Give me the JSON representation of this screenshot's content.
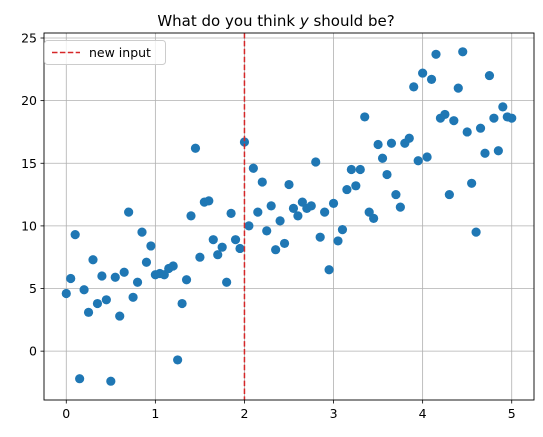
{
  "chart_data": {
    "type": "scatter",
    "title": "What do you think y should be?",
    "title_parts": {
      "before": "What do you think ",
      "var": "y",
      "after": " should be?"
    },
    "xlabel": "",
    "ylabel": "",
    "xlim": [
      -0.25,
      5.25
    ],
    "ylim": [
      -3.9,
      25.4
    ],
    "x_ticks": [
      0,
      1,
      2,
      3,
      4,
      5
    ],
    "x_tick_labels": [
      "0",
      "1",
      "2",
      "3",
      "4",
      "5"
    ],
    "y_ticks": [
      0,
      5,
      10,
      15,
      20,
      25
    ],
    "y_tick_labels": [
      "0",
      "5",
      "10",
      "15",
      "20",
      "25"
    ],
    "grid": true,
    "legend_position": "top-left",
    "vline": {
      "x": 2,
      "label": "new input",
      "color": "#d62728",
      "style": "dashed"
    },
    "marker_color": "#1f77b4",
    "x": [
      0.0,
      0.05,
      0.1,
      0.15,
      0.2,
      0.25,
      0.3,
      0.35,
      0.4,
      0.45,
      0.5,
      0.55,
      0.6,
      0.65,
      0.7,
      0.75,
      0.8,
      0.85,
      0.9,
      0.95,
      1.0,
      1.05,
      1.1,
      1.15,
      1.2,
      1.25,
      1.3,
      1.35,
      1.4,
      1.45,
      1.5,
      1.55,
      1.6,
      1.65,
      1.7,
      1.75,
      1.8,
      1.85,
      1.9,
      1.95,
      2.0,
      2.05,
      2.1,
      2.15,
      2.2,
      2.25,
      2.3,
      2.35,
      2.4,
      2.45,
      2.5,
      2.55,
      2.6,
      2.65,
      2.7,
      2.75,
      2.8,
      2.85,
      2.9,
      2.95,
      3.0,
      3.05,
      3.1,
      3.15,
      3.2,
      3.25,
      3.3,
      3.35,
      3.4,
      3.45,
      3.5,
      3.55,
      3.6,
      3.65,
      3.7,
      3.75,
      3.8,
      3.85,
      3.9,
      3.95,
      4.0,
      4.05,
      4.1,
      4.15,
      4.2,
      4.25,
      4.3,
      4.35,
      4.4,
      4.45,
      4.5,
      4.55,
      4.6,
      4.65,
      4.7,
      4.75,
      4.8,
      4.85,
      4.9,
      4.95,
      5.0
    ],
    "y": [
      4.6,
      5.8,
      9.3,
      -2.2,
      4.9,
      3.1,
      7.3,
      3.8,
      6.0,
      4.1,
      -2.4,
      5.9,
      2.8,
      6.3,
      11.1,
      4.3,
      5.5,
      9.5,
      7.1,
      8.4,
      6.1,
      6.2,
      6.1,
      6.6,
      6.8,
      -0.7,
      3.8,
      5.7,
      10.8,
      16.2,
      7.5,
      11.9,
      12.0,
      8.9,
      7.7,
      8.3,
      5.5,
      11.0,
      8.9,
      8.2,
      16.7,
      10.0,
      14.6,
      11.1,
      13.5,
      9.6,
      11.6,
      8.1,
      10.4,
      8.6,
      13.3,
      11.4,
      10.8,
      11.9,
      11.4,
      11.6,
      15.1,
      9.1,
      11.1,
      6.5,
      11.8,
      8.8,
      9.7,
      12.9,
      14.5,
      13.2,
      14.5,
      18.7,
      11.1,
      10.6,
      16.5,
      15.4,
      14.1,
      16.6,
      12.5,
      11.5,
      16.6,
      17.0,
      21.1,
      15.2,
      22.2,
      15.5,
      21.7,
      23.7,
      18.6,
      18.9,
      12.5,
      18.4,
      21.0,
      23.9,
      17.5,
      13.4,
      9.5,
      17.8,
      15.8,
      22.0,
      18.6,
      16.0,
      19.5,
      18.7,
      18.6
    ]
  }
}
